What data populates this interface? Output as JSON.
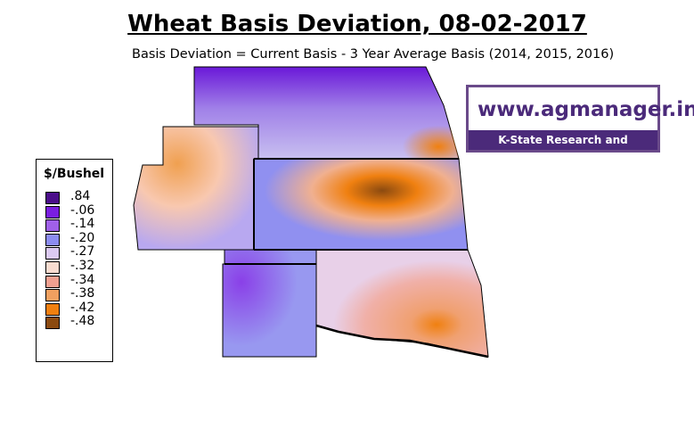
{
  "header": {
    "title": "Wheat Basis Deviation, 08-02-2017",
    "subtitle": "Basis Deviation = Current Basis - 3 Year Average Basis (2014, 2015, 2016)"
  },
  "logo": {
    "text": "www.agmanager.info",
    "subtext": "K-State Research and Extension"
  },
  "legend": {
    "title": "$/Bushel",
    "items": [
      {
        "label": ".84",
        "color": "#4b0e8a"
      },
      {
        "label": "-.06",
        "color": "#7a1ee0"
      },
      {
        "label": "-.14",
        "color": "#a060e8"
      },
      {
        "label": "-.20",
        "color": "#8c8cf0"
      },
      {
        "label": "-.27",
        "color": "#dccaf2"
      },
      {
        "label": "-.32",
        "color": "#f8dcd0"
      },
      {
        "label": "-.34",
        "color": "#f0a090"
      },
      {
        "label": "-.38",
        "color": "#f0a060"
      },
      {
        "label": "-.42",
        "color": "#f08010"
      },
      {
        "label": "-.48",
        "color": "#8b4a10"
      }
    ]
  }
}
